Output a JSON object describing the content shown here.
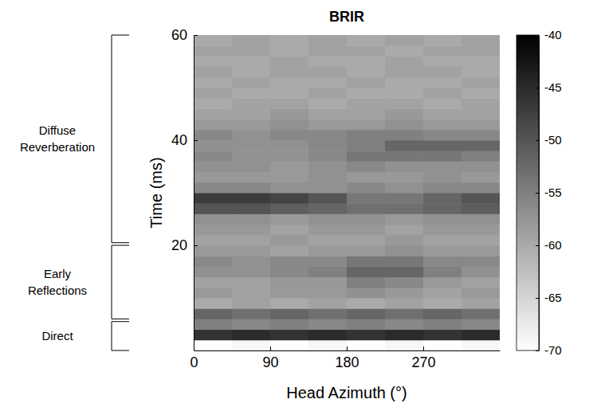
{
  "chart_data": {
    "type": "heatmap",
    "title": "BRIR",
    "x_label": "Head Azimuth (°)",
    "y_label": "Time (ms)",
    "xlim": [
      0,
      360
    ],
    "xticks": [
      0,
      90,
      180,
      270
    ],
    "ylim": [
      0,
      60
    ],
    "yticks": [
      20,
      40,
      60
    ],
    "x_edges": [
      0,
      45,
      90,
      135,
      180,
      225,
      270,
      315,
      360
    ],
    "y_edges": [
      0,
      2,
      4,
      6,
      8,
      10,
      12,
      14,
      16,
      18,
      20,
      22,
      24,
      26,
      28,
      30,
      32,
      34,
      36,
      38,
      40,
      42,
      44,
      46,
      48,
      50,
      52,
      54,
      56,
      58,
      60
    ],
    "z": [
      [
        -70,
        -69,
        -70,
        -69,
        -70,
        -69,
        -70,
        -69
      ],
      [
        -46,
        -45,
        -46,
        -45,
        -46,
        -45,
        -46,
        -45
      ],
      [
        -55,
        -56,
        -55,
        -56,
        -55,
        -56,
        -55,
        -56
      ],
      [
        -52,
        -53,
        -52,
        -53,
        -52,
        -53,
        -52,
        -53
      ],
      [
        -60,
        -59,
        -60,
        -59,
        -60,
        -59,
        -60,
        -59
      ],
      [
        -58,
        -59,
        -58,
        -58,
        -57,
        -58,
        -59,
        -58
      ],
      [
        -59,
        -59,
        -58,
        -58,
        -55,
        -56,
        -58,
        -59
      ],
      [
        -57,
        -57,
        -56,
        -55,
        -52,
        -52,
        -55,
        -57
      ],
      [
        -56,
        -57,
        -56,
        -56,
        -54,
        -54,
        -56,
        -56
      ],
      [
        -58,
        -58,
        -59,
        -58,
        -58,
        -57,
        -58,
        -58
      ],
      [
        -59,
        -59,
        -58,
        -59,
        -59,
        -58,
        -59,
        -59
      ],
      [
        -58,
        -58,
        -59,
        -58,
        -58,
        -59,
        -58,
        -58
      ],
      [
        -57,
        -57,
        -58,
        -57,
        -57,
        -58,
        -57,
        -57
      ],
      [
        -50,
        -50,
        -51,
        -52,
        -53,
        -53,
        -52,
        -51
      ],
      [
        -47,
        -47,
        -48,
        -50,
        -54,
        -54,
        -52,
        -50
      ],
      [
        -56,
        -56,
        -57,
        -57,
        -56,
        -57,
        -56,
        -56
      ],
      [
        -58,
        -58,
        -58,
        -57,
        -58,
        -58,
        -57,
        -58
      ],
      [
        -57,
        -57,
        -58,
        -57,
        -56,
        -57,
        -57,
        -57
      ],
      [
        -56,
        -57,
        -57,
        -56,
        -54,
        -54,
        -54,
        -55
      ],
      [
        -57,
        -57,
        -57,
        -56,
        -55,
        -52,
        -52,
        -52
      ],
      [
        -56,
        -57,
        -56,
        -56,
        -55,
        -55,
        -56,
        -56
      ],
      [
        -58,
        -58,
        -57,
        -58,
        -58,
        -57,
        -58,
        -58
      ],
      [
        -59,
        -59,
        -58,
        -59,
        -59,
        -58,
        -59,
        -59
      ],
      [
        -60,
        -59,
        -59,
        -60,
        -59,
        -59,
        -60,
        -59
      ],
      [
        -59,
        -60,
        -60,
        -59,
        -60,
        -60,
        -59,
        -60
      ],
      [
        -60,
        -59,
        -60,
        -60,
        -59,
        -60,
        -60,
        -59
      ],
      [
        -59,
        -60,
        -59,
        -59,
        -60,
        -59,
        -59,
        -60
      ],
      [
        -60,
        -60,
        -59,
        -60,
        -60,
        -59,
        -60,
        -60
      ],
      [
        -59,
        -59,
        -60,
        -59,
        -59,
        -60,
        -59,
        -59
      ],
      [
        -60,
        -59,
        -60,
        -59,
        -60,
        -59,
        -60,
        -59
      ]
    ],
    "colorbar": {
      "range": [
        -70,
        -40
      ],
      "ticks": [
        -70,
        -65,
        -60,
        -55,
        -50,
        -45,
        -40
      ]
    },
    "annotations": [
      {
        "text": "Diffuse Reverberation",
        "range": [
          20.5,
          60
        ]
      },
      {
        "text": "Early Reflections",
        "range": [
          6,
          20
        ]
      },
      {
        "text": "Direct",
        "range": [
          0,
          5.5
        ]
      }
    ]
  }
}
